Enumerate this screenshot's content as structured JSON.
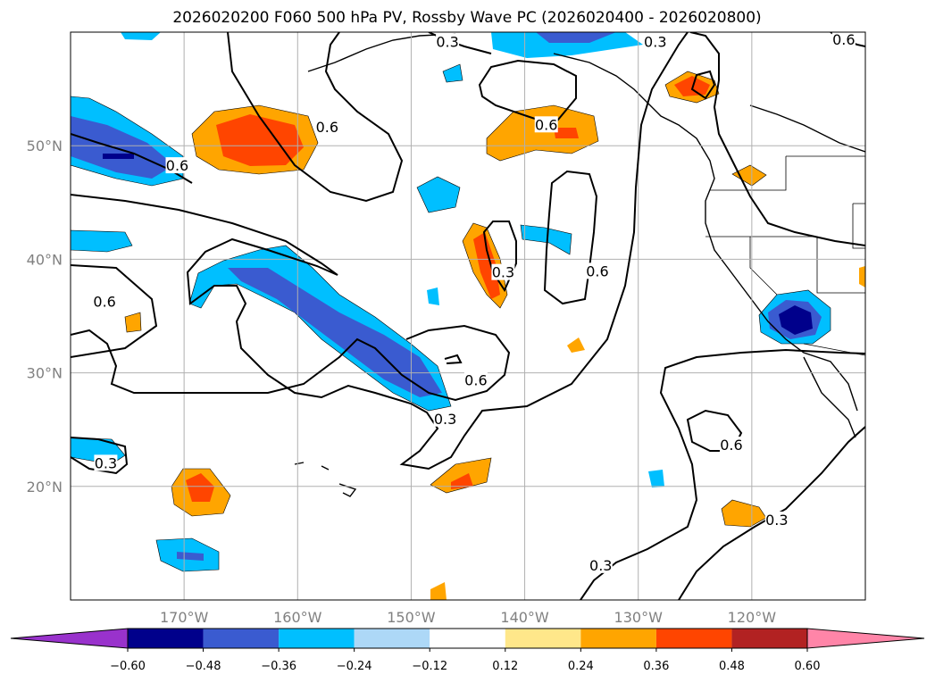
{
  "chart_data": {
    "type": "map-contour",
    "title": "2026020200 F060 500 hPa PV, Rossby Wave PC (2026020400 - 2026020800)",
    "x_range": [
      180,
      110
    ],
    "y_range": [
      10,
      60
    ],
    "x_ticks": [
      170,
      160,
      150,
      140,
      130,
      120
    ],
    "x_tick_labels": [
      "170°W",
      "160°W",
      "150°W",
      "140°W",
      "130°W",
      "120°W"
    ],
    "y_ticks": [
      20,
      30,
      40,
      50
    ],
    "y_tick_labels": [
      "20°N",
      "30°N",
      "40°N",
      "50°N"
    ],
    "grid": true,
    "colorbar": {
      "orientation": "horizontal",
      "extend": "both",
      "ticks": [
        -0.6,
        -0.48,
        -0.36,
        -0.24,
        -0.12,
        0.12,
        0.24,
        0.36,
        0.48,
        0.6
      ],
      "tick_labels": [
        "−0.60",
        "−0.48",
        "−0.36",
        "−0.24",
        "−0.12",
        "0.12",
        "0.24",
        "0.36",
        "0.48",
        "0.60"
      ],
      "colors": [
        "#9932cc",
        "#00008b",
        "#3a5bd0",
        "#00bfff",
        "#add8f7",
        "#ffffff",
        "#ffe78a",
        "#ffa500",
        "#ff4500",
        "#b22222",
        "#ff85a8"
      ]
    },
    "contour_labels": [
      {
        "lon": 146.8,
        "lat": 59.1,
        "text": "0.3"
      },
      {
        "lon": 128.5,
        "lat": 59.1,
        "text": "0.3"
      },
      {
        "lon": 157.4,
        "lat": 51.6,
        "text": "0.6"
      },
      {
        "lon": 170.6,
        "lat": 48.2,
        "text": "0.6"
      },
      {
        "lon": 138.1,
        "lat": 51.8,
        "text": "0.6"
      },
      {
        "lon": 111.9,
        "lat": 59.3,
        "text": "0.6"
      },
      {
        "lon": 177.0,
        "lat": 36.2,
        "text": "0.6"
      },
      {
        "lon": 141.9,
        "lat": 38.8,
        "text": "0.3"
      },
      {
        "lon": 133.6,
        "lat": 38.9,
        "text": "0.6"
      },
      {
        "lon": 144.3,
        "lat": 29.3,
        "text": "0.6"
      },
      {
        "lon": 147.0,
        "lat": 25.9,
        "text": "0.3"
      },
      {
        "lon": 176.9,
        "lat": 22.0,
        "text": "0.3"
      },
      {
        "lon": 121.8,
        "lat": 23.6,
        "text": "0.6"
      },
      {
        "lon": 117.8,
        "lat": 17.0,
        "text": "0.3"
      },
      {
        "lon": 133.3,
        "lat": 13.0,
        "text": "0.3"
      }
    ]
  }
}
